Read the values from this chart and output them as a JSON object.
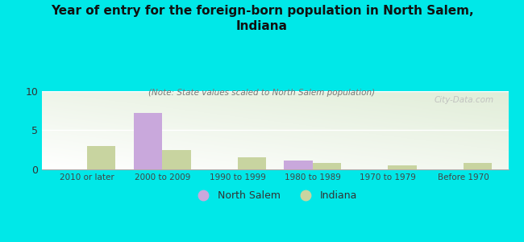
{
  "title": "Year of entry for the foreign-born population in North Salem,\nIndiana",
  "subtitle": "(Note: State values scaled to North Salem population)",
  "categories": [
    "2010 or later",
    "2000 to 2009",
    "1990 to 1999",
    "1980 to 1989",
    "1970 to 1979",
    "Before 1970"
  ],
  "north_salem": [
    0,
    7.2,
    0,
    1.1,
    0,
    0
  ],
  "indiana": [
    3.0,
    2.5,
    1.5,
    0.8,
    0.5,
    0.8
  ],
  "north_salem_color": "#c9a8dc",
  "indiana_color": "#c8d4a0",
  "background_color": "#00e8e8",
  "ylim": [
    0,
    10
  ],
  "yticks": [
    0,
    5,
    10
  ],
  "bar_width": 0.38,
  "watermark": "City-Data.com",
  "legend_north_salem": "North Salem",
  "legend_indiana": "Indiana"
}
